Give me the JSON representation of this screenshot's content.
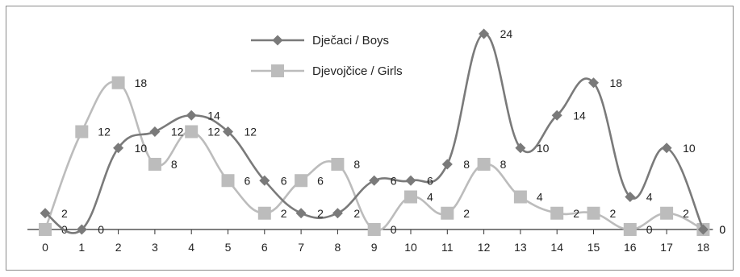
{
  "chart_data": {
    "type": "line",
    "title": "",
    "xlabel": "",
    "ylabel": "",
    "x": [
      "0",
      "1",
      "2",
      "3",
      "4",
      "5",
      "6",
      "7",
      "8",
      "9",
      "10",
      "11",
      "12",
      "13",
      "14",
      "15",
      "16",
      "17",
      "18"
    ],
    "ylim": [
      0,
      24
    ],
    "grid": false,
    "legend_position": "top-center",
    "series": [
      {
        "name": "Dječaci / Boys",
        "color": "#7a7a7a",
        "marker": "diamond",
        "values": [
          2,
          0,
          10,
          12,
          14,
          12,
          6,
          2,
          2,
          6,
          6,
          8,
          24,
          10,
          14,
          18,
          4,
          10,
          0
        ]
      },
      {
        "name": "Djevojčice / Girls",
        "color": "#bcbcbc",
        "marker": "square",
        "values": [
          0,
          12,
          18,
          8,
          12,
          6,
          2,
          6,
          8,
          0,
          4,
          2,
          8,
          4,
          2,
          2,
          0,
          2,
          0
        ]
      }
    ]
  }
}
